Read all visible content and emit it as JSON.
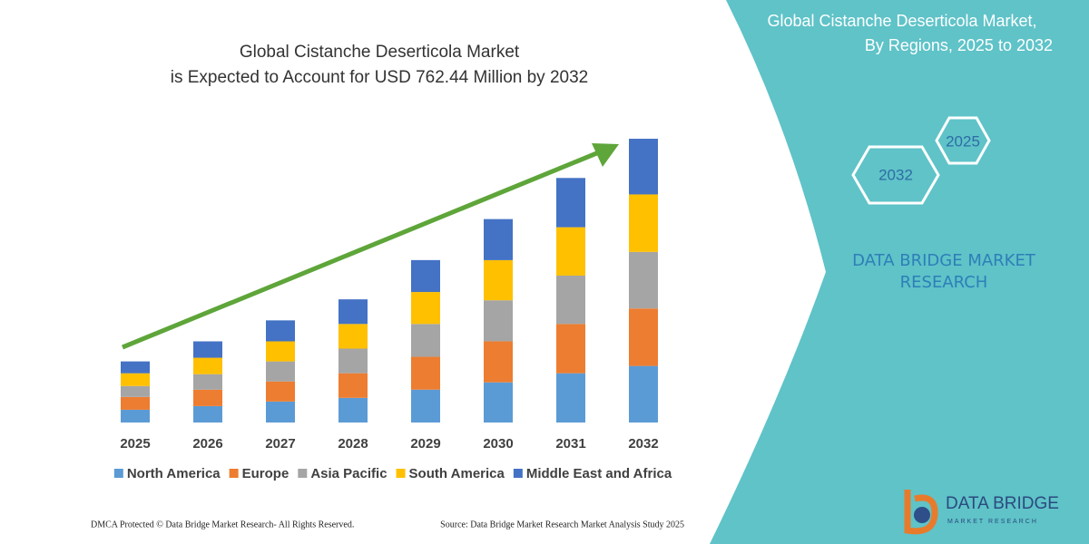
{
  "chart_data": {
    "type": "stacked-bar",
    "title": [
      "Global Cistanche Deserticola Market",
      "is Expected to Account for USD 762.44 Million by 2032"
    ],
    "categories": [
      "2025",
      "2026",
      "2027",
      "2028",
      "2029",
      "2030",
      "2031",
      "2032"
    ],
    "series": [
      {
        "name": "North America",
        "color": "#5b9bd5",
        "values": [
          34.3,
          44.1,
          56.4,
          66.2,
          88.3,
          107.9,
          132.4,
          152.0
        ]
      },
      {
        "name": "Europe",
        "color": "#ed7d31",
        "values": [
          34.3,
          44.1,
          53.9,
          66.2,
          88.3,
          110.3,
          132.4,
          154.5
        ]
      },
      {
        "name": "Asia Pacific",
        "color": "#a5a5a5",
        "values": [
          29.4,
          41.7,
          53.9,
          66.2,
          88.3,
          110.3,
          130.0,
          152.0
        ]
      },
      {
        "name": "South America",
        "color": "#ffc000",
        "values": [
          34.3,
          44.1,
          53.9,
          66.2,
          85.8,
          107.9,
          130.0,
          154.5
        ]
      },
      {
        "name": "Middle East and Africa",
        "color": "#4472c4",
        "values": [
          31.9,
          44.1,
          56.4,
          66.2,
          85.8,
          110.3,
          132.4,
          149.6
        ]
      }
    ],
    "ylim": [
      0,
      770
    ],
    "grid": false,
    "legend": "bottom"
  },
  "panel": {
    "title": [
      "Global Cistanche Deserticola Market,",
      "By Regions, 2025 to 2032"
    ],
    "hexagons": [
      "2025",
      "2032"
    ],
    "brand": "DATA BRIDGE MARKET RESEARCH"
  },
  "footer": {
    "left": "DMCA Protected © Data Bridge Market Research-  All Rights Reserved.",
    "right": "Source: Data Bridge Market Research  Market Analysis Study 2025"
  },
  "logo": {
    "name": "DATA BRIDGE",
    "tagline": "MARKET RESEARCH"
  }
}
